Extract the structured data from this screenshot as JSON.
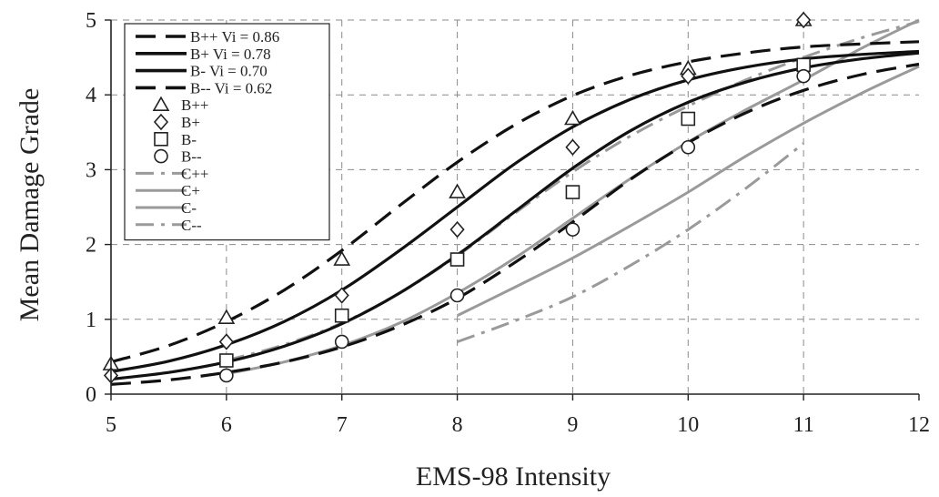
{
  "chart_data": {
    "type": "line",
    "title": "",
    "xlabel": "EMS-98  Intensity",
    "ylabel": "Mean Damage Grade",
    "xlim": [
      5,
      12
    ],
    "ylim": [
      0,
      5
    ],
    "x_ticks": [
      "5",
      "6",
      "7",
      "8",
      "9",
      "10",
      "11",
      "12"
    ],
    "y_ticks": [
      "0",
      "1",
      "2",
      "3",
      "4",
      "5"
    ],
    "grid": "dashed",
    "legend_position": "top-left",
    "colors": {
      "black": "#111111",
      "gray": "#9a9a9a"
    },
    "curves": [
      {
        "name": "B++ Vi = 0.86",
        "color": "#111111",
        "dash": "long",
        "x": [
          5,
          5.5,
          6,
          6.5,
          7,
          7.5,
          8,
          8.5,
          9,
          9.5,
          10,
          10.5,
          11,
          11.5,
          12
        ],
        "y": [
          0.43,
          0.65,
          0.97,
          1.39,
          1.92,
          2.52,
          3.1,
          3.6,
          3.99,
          4.26,
          4.44,
          4.56,
          4.64,
          4.68,
          4.71
        ]
      },
      {
        "name": "B+ Vi = 0.78",
        "color": "#111111",
        "dash": "solid",
        "x": [
          5,
          5.5,
          6,
          6.5,
          7,
          7.5,
          8,
          8.5,
          9,
          9.5,
          10,
          10.5,
          11,
          11.5,
          12
        ],
        "y": [
          0.3,
          0.44,
          0.66,
          0.97,
          1.39,
          1.92,
          2.5,
          3.08,
          3.57,
          3.94,
          4.2,
          4.37,
          4.48,
          4.54,
          4.58
        ]
      },
      {
        "name": "B- Vi = 0.70",
        "color": "#111111",
        "dash": "solid",
        "x": [
          5,
          5.5,
          6,
          6.5,
          7,
          7.5,
          8,
          8.5,
          9,
          9.5,
          10,
          10.5,
          11,
          11.5,
          12
        ],
        "y": [
          0.2,
          0.29,
          0.43,
          0.64,
          0.94,
          1.35,
          1.86,
          2.44,
          3.02,
          3.52,
          3.9,
          4.17,
          4.36,
          4.48,
          4.56
        ]
      },
      {
        "name": "B-- Vi = 0.62",
        "color": "#111111",
        "dash": "long",
        "x": [
          5,
          5.5,
          6,
          6.5,
          7,
          7.5,
          8,
          8.5,
          9,
          9.5,
          10,
          10.5,
          11,
          11.5,
          12
        ],
        "y": [
          0.13,
          0.19,
          0.29,
          0.43,
          0.63,
          0.91,
          1.28,
          1.76,
          2.3,
          2.87,
          3.36,
          3.76,
          4.06,
          4.27,
          4.41
        ]
      },
      {
        "name": "C++",
        "color": "#9a9a9a",
        "dash": "dashdot",
        "x": [
          6,
          6.5,
          7,
          7.5,
          8,
          8.5,
          9,
          9.5,
          10,
          10.5,
          11,
          11.5,
          12
        ],
        "y": [
          0.45,
          0.66,
          0.95,
          1.35,
          1.85,
          2.42,
          2.97,
          3.45,
          3.85,
          4.2,
          4.5,
          4.76,
          4.98
        ]
      },
      {
        "name": "C+",
        "color": "#9a9a9a",
        "dash": "solid",
        "x": [
          6,
          6.5,
          7,
          7.5,
          8,
          8.5,
          9,
          9.5,
          10,
          10.5,
          11,
          11.5,
          12
        ],
        "y": [
          0.27,
          0.43,
          0.65,
          0.95,
          1.35,
          1.82,
          2.35,
          2.88,
          3.37,
          3.8,
          4.2,
          4.62,
          5.0
        ]
      },
      {
        "name": "C-",
        "color": "#9a9a9a",
        "dash": "solid",
        "x": [
          8,
          8.5,
          9,
          9.5,
          10,
          10.5,
          11,
          11.5,
          12
        ],
        "y": [
          1.05,
          1.43,
          1.82,
          2.25,
          2.7,
          3.18,
          3.62,
          4.02,
          4.38
        ]
      },
      {
        "name": "C--",
        "color": "#9a9a9a",
        "dash": "dashdot",
        "x": [
          8,
          8.5,
          9,
          9.5,
          10,
          10.5,
          11
        ],
        "y": [
          0.7,
          0.98,
          1.3,
          1.72,
          2.2,
          2.75,
          3.35
        ]
      }
    ],
    "points": [
      {
        "name": "B++",
        "marker": "triangle",
        "x": [
          5,
          6,
          7,
          8,
          9,
          10,
          11
        ],
        "y": [
          0.4,
          1.02,
          1.8,
          2.7,
          3.68,
          4.35,
          5.0
        ]
      },
      {
        "name": "B+",
        "marker": "diamond",
        "x": [
          5,
          6,
          7,
          8,
          9,
          10,
          11
        ],
        "y": [
          0.25,
          0.7,
          1.32,
          2.2,
          3.3,
          4.25,
          5.0
        ]
      },
      {
        "name": "B-",
        "marker": "square",
        "x": [
          6,
          7,
          8,
          9,
          10,
          11
        ],
        "y": [
          0.45,
          1.05,
          1.8,
          2.7,
          3.68,
          4.4
        ]
      },
      {
        "name": "B--",
        "marker": "circle",
        "x": [
          6,
          7,
          8,
          9,
          10,
          11
        ],
        "y": [
          0.25,
          0.7,
          1.32,
          2.2,
          3.3,
          4.25
        ]
      }
    ],
    "legend": [
      {
        "label": "B++ Vi = 0.86",
        "kind": "line",
        "color": "#111111",
        "dash": "long"
      },
      {
        "label": "B+ Vi = 0.78",
        "kind": "line",
        "color": "#111111",
        "dash": "solid"
      },
      {
        "label": "B- Vi = 0.70",
        "kind": "line",
        "color": "#111111",
        "dash": "solid"
      },
      {
        "label": "B-- Vi = 0.62",
        "kind": "line",
        "color": "#111111",
        "dash": "long"
      },
      {
        "label": "B++",
        "kind": "marker",
        "marker": "triangle"
      },
      {
        "label": "B+",
        "kind": "marker",
        "marker": "diamond"
      },
      {
        "label": "B-",
        "kind": "marker",
        "marker": "square"
      },
      {
        "label": "B--",
        "kind": "marker",
        "marker": "circle"
      },
      {
        "label": "C++",
        "kind": "line",
        "color": "#9a9a9a",
        "dash": "dashdot"
      },
      {
        "label": "C+",
        "kind": "line",
        "color": "#9a9a9a",
        "dash": "solid"
      },
      {
        "label": "C-",
        "kind": "line",
        "color": "#9a9a9a",
        "dash": "solid"
      },
      {
        "label": "C--",
        "kind": "line",
        "color": "#9a9a9a",
        "dash": "dashdot"
      }
    ]
  }
}
